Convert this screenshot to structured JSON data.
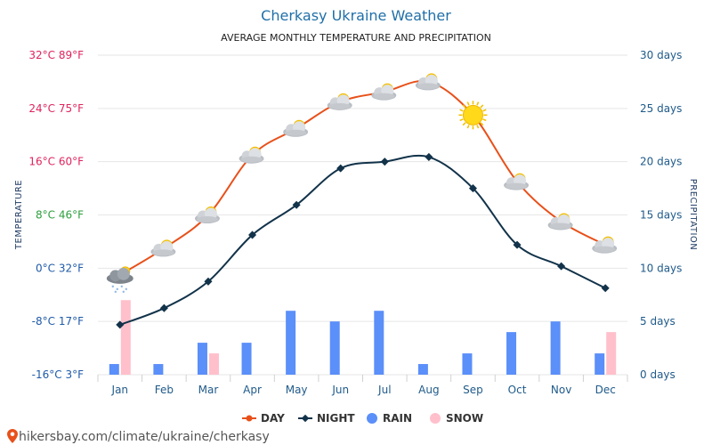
{
  "chart_data": {
    "type": "line",
    "title": "Cherkasy Ukraine Weather",
    "subtitle": "AVERAGE MONTHLY TEMPERATURE AND PRECIPITATION",
    "ylabel": "TEMPERATURE",
    "y2label": "PRECIPITATION",
    "categories": [
      "Jan",
      "Feb",
      "Mar",
      "Apr",
      "May",
      "Jun",
      "Jul",
      "Aug",
      "Sep",
      "Oct",
      "Nov",
      "Dec"
    ],
    "temp_axis": {
      "ylim": [
        -16,
        32
      ],
      "ticks": [
        {
          "value": 32,
          "label": "32°C 89°F",
          "color": "#e0245e"
        },
        {
          "value": 24,
          "label": "24°C 75°F",
          "color": "#e0245e"
        },
        {
          "value": 16,
          "label": "16°C 60°F",
          "color": "#e0245e"
        },
        {
          "value": 8,
          "label": "8°C 46°F",
          "color": "#2e9e3e"
        },
        {
          "value": 0,
          "label": "0°C 32°F",
          "color": "#1f5aa8"
        },
        {
          "value": -8,
          "label": "-8°C 17°F",
          "color": "#1f5aa8"
        },
        {
          "value": -16,
          "label": "-16°C 3°F",
          "color": "#1f5aa8"
        }
      ]
    },
    "precip_axis": {
      "ylim": [
        0,
        30
      ],
      "ticks": [
        {
          "value": 30,
          "label": "30 days"
        },
        {
          "value": 25,
          "label": "25 days"
        },
        {
          "value": 20,
          "label": "20 days"
        },
        {
          "value": 15,
          "label": "15 days"
        },
        {
          "value": 10,
          "label": "10 days"
        },
        {
          "value": 5,
          "label": "5 days"
        },
        {
          "value": 0,
          "label": "0 days"
        }
      ]
    },
    "series": [
      {
        "name": "DAY",
        "kind": "line",
        "axis": "temp",
        "color": "#e8501a",
        "values": [
          -1,
          3,
          8,
          17,
          21,
          25,
          26.5,
          28,
          23,
          13,
          7,
          3.5
        ]
      },
      {
        "name": "NIGHT",
        "kind": "line",
        "axis": "temp",
        "color": "#12334a",
        "values": [
          -8.5,
          -6,
          -2,
          5,
          9.5,
          15,
          16,
          16.7,
          12,
          3.5,
          0.3,
          -3
        ]
      },
      {
        "name": "RAIN",
        "kind": "bar",
        "axis": "precip",
        "color": "#5b8ff9",
        "values": [
          1,
          1,
          3,
          3,
          6,
          5,
          6,
          1,
          2,
          4,
          5,
          2
        ]
      },
      {
        "name": "SNOW",
        "kind": "bar",
        "axis": "precip",
        "color": "#ffc0cb",
        "values": [
          7,
          0,
          2,
          0,
          0,
          0,
          0,
          0,
          0,
          0,
          0,
          4
        ]
      }
    ],
    "weather_icons": [
      "snow-cloud",
      "partly-cloudy",
      "partly-cloudy",
      "partly-cloudy",
      "partly-cloudy",
      "partly-cloudy",
      "partly-cloudy",
      "partly-cloudy",
      "sun",
      "partly-cloudy",
      "partly-cloudy",
      "partly-cloudy"
    ],
    "grid": true,
    "legend": {
      "placement": "bottom-center"
    }
  },
  "source_text": "hikersbay.com/climate/ukraine/cherkasy"
}
